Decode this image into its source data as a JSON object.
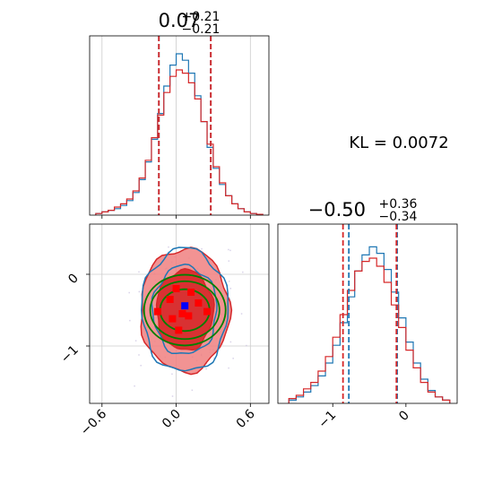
{
  "kl_label": "KL = 0.0072",
  "colors": {
    "blue": "#1f77b4",
    "red": "#d62728",
    "green": "#008000",
    "pink": "#f08080",
    "marker_blue": "#0000ff",
    "marker_red": "#ff0000",
    "grid": "#cccccc"
  },
  "chart_data": [
    {
      "type": "histogram",
      "panel": "marginal-1",
      "title": {
        "value": "0.07",
        "plus": "+0.21",
        "minus": "−0.21"
      },
      "xlim": [
        -0.7,
        0.75
      ],
      "bins": [
        -0.65,
        -0.6,
        -0.55,
        -0.5,
        -0.45,
        -0.4,
        -0.35,
        -0.3,
        -0.25,
        -0.2,
        -0.15,
        -0.1,
        -0.05,
        0.0,
        0.05,
        0.1,
        0.15,
        0.2,
        0.25,
        0.3,
        0.35,
        0.4,
        0.45,
        0.5,
        0.55,
        0.6,
        0.65,
        0.7
      ],
      "series": [
        {
          "color": "blue",
          "values": [
            0.01,
            0.02,
            0.03,
            0.04,
            0.06,
            0.09,
            0.14,
            0.22,
            0.33,
            0.47,
            0.63,
            0.8,
            0.93,
            1.0,
            0.96,
            0.88,
            0.74,
            0.58,
            0.42,
            0.29,
            0.19,
            0.12,
            0.07,
            0.04,
            0.02,
            0.01,
            0.005
          ]
        },
        {
          "color": "red",
          "values": [
            0.01,
            0.02,
            0.03,
            0.05,
            0.07,
            0.1,
            0.15,
            0.23,
            0.34,
            0.48,
            0.62,
            0.76,
            0.86,
            0.9,
            0.88,
            0.82,
            0.72,
            0.58,
            0.44,
            0.3,
            0.2,
            0.12,
            0.07,
            0.04,
            0.02,
            0.01,
            0.005
          ]
        }
      ],
      "quantile_lines": [
        {
          "color": "blue",
          "values": [
            -0.14,
            0.28
          ]
        },
        {
          "color": "red",
          "values": [
            -0.14,
            0.28
          ]
        }
      ],
      "grid_x": [
        -0.6,
        0.0,
        0.6
      ]
    },
    {
      "type": "contour",
      "panel": "joint",
      "xlim": [
        -0.7,
        0.75
      ],
      "ylim": [
        -1.8,
        0.7
      ],
      "x_ticks": [
        -0.6,
        0.0,
        0.6
      ],
      "x_tick_labels": [
        "−0.6",
        "0.0",
        "0.6"
      ],
      "y_ticks": [
        0,
        -1
      ],
      "y_tick_labels": [
        "0",
        "−1"
      ],
      "center": [
        0.07,
        -0.5
      ],
      "ellipses": [
        {
          "color": "green",
          "sx": 0.33,
          "sy": 0.88
        },
        {
          "color": "green",
          "sx": 0.28,
          "sy": 0.72
        },
        {
          "color": "green",
          "sx": 0.2,
          "sy": 0.52
        }
      ],
      "fill_levels": [
        {
          "color": "pink",
          "sx": 0.36,
          "sy": 0.86
        },
        {
          "color": "red",
          "sx": 0.23,
          "sy": 0.56
        }
      ],
      "blue_levels": [
        {
          "sx": 0.35,
          "sy": 0.86
        },
        {
          "sx": 0.26,
          "sy": 0.62
        }
      ],
      "red_markers": [
        [
          0.0,
          -0.2
        ],
        [
          0.12,
          -0.25
        ],
        [
          -0.05,
          -0.35
        ],
        [
          0.18,
          -0.4
        ],
        [
          -0.15,
          -0.52
        ],
        [
          0.05,
          -0.55
        ],
        [
          0.25,
          -0.52
        ],
        [
          -0.03,
          -0.62
        ],
        [
          0.1,
          -0.58
        ],
        [
          0.02,
          -0.78
        ]
      ],
      "blue_marker": [
        0.07,
        -0.44
      ]
    },
    {
      "type": "histogram",
      "panel": "marginal-2",
      "title": {
        "value": "−0.50",
        "plus": "+0.36",
        "minus": "−0.34"
      },
      "xlim": [
        -1.75,
        0.7
      ],
      "bins": [
        -1.6,
        -1.5,
        -1.4,
        -1.3,
        -1.2,
        -1.1,
        -1.0,
        -0.9,
        -0.8,
        -0.7,
        -0.6,
        -0.5,
        -0.4,
        -0.3,
        -0.2,
        -0.1,
        0.0,
        0.1,
        0.2,
        0.3,
        0.4,
        0.5,
        0.6
      ],
      "series": [
        {
          "color": "blue",
          "values": [
            0.02,
            0.04,
            0.07,
            0.11,
            0.17,
            0.25,
            0.36,
            0.5,
            0.66,
            0.82,
            0.92,
            0.97,
            0.93,
            0.83,
            0.69,
            0.53,
            0.38,
            0.25,
            0.15,
            0.08,
            0.04,
            0.02
          ]
        },
        {
          "color": "red",
          "values": [
            0.03,
            0.05,
            0.09,
            0.13,
            0.2,
            0.29,
            0.41,
            0.55,
            0.7,
            0.82,
            0.88,
            0.9,
            0.85,
            0.75,
            0.61,
            0.47,
            0.33,
            0.22,
            0.13,
            0.07,
            0.04,
            0.02
          ]
        }
      ],
      "quantile_lines": [
        {
          "color": "blue",
          "values": [
            -0.78,
            -0.12
          ]
        },
        {
          "color": "red",
          "values": [
            -0.86,
            -0.13
          ]
        }
      ],
      "x_ticks": [
        -1,
        0
      ],
      "x_tick_labels": [
        "−1",
        "0"
      ]
    }
  ]
}
